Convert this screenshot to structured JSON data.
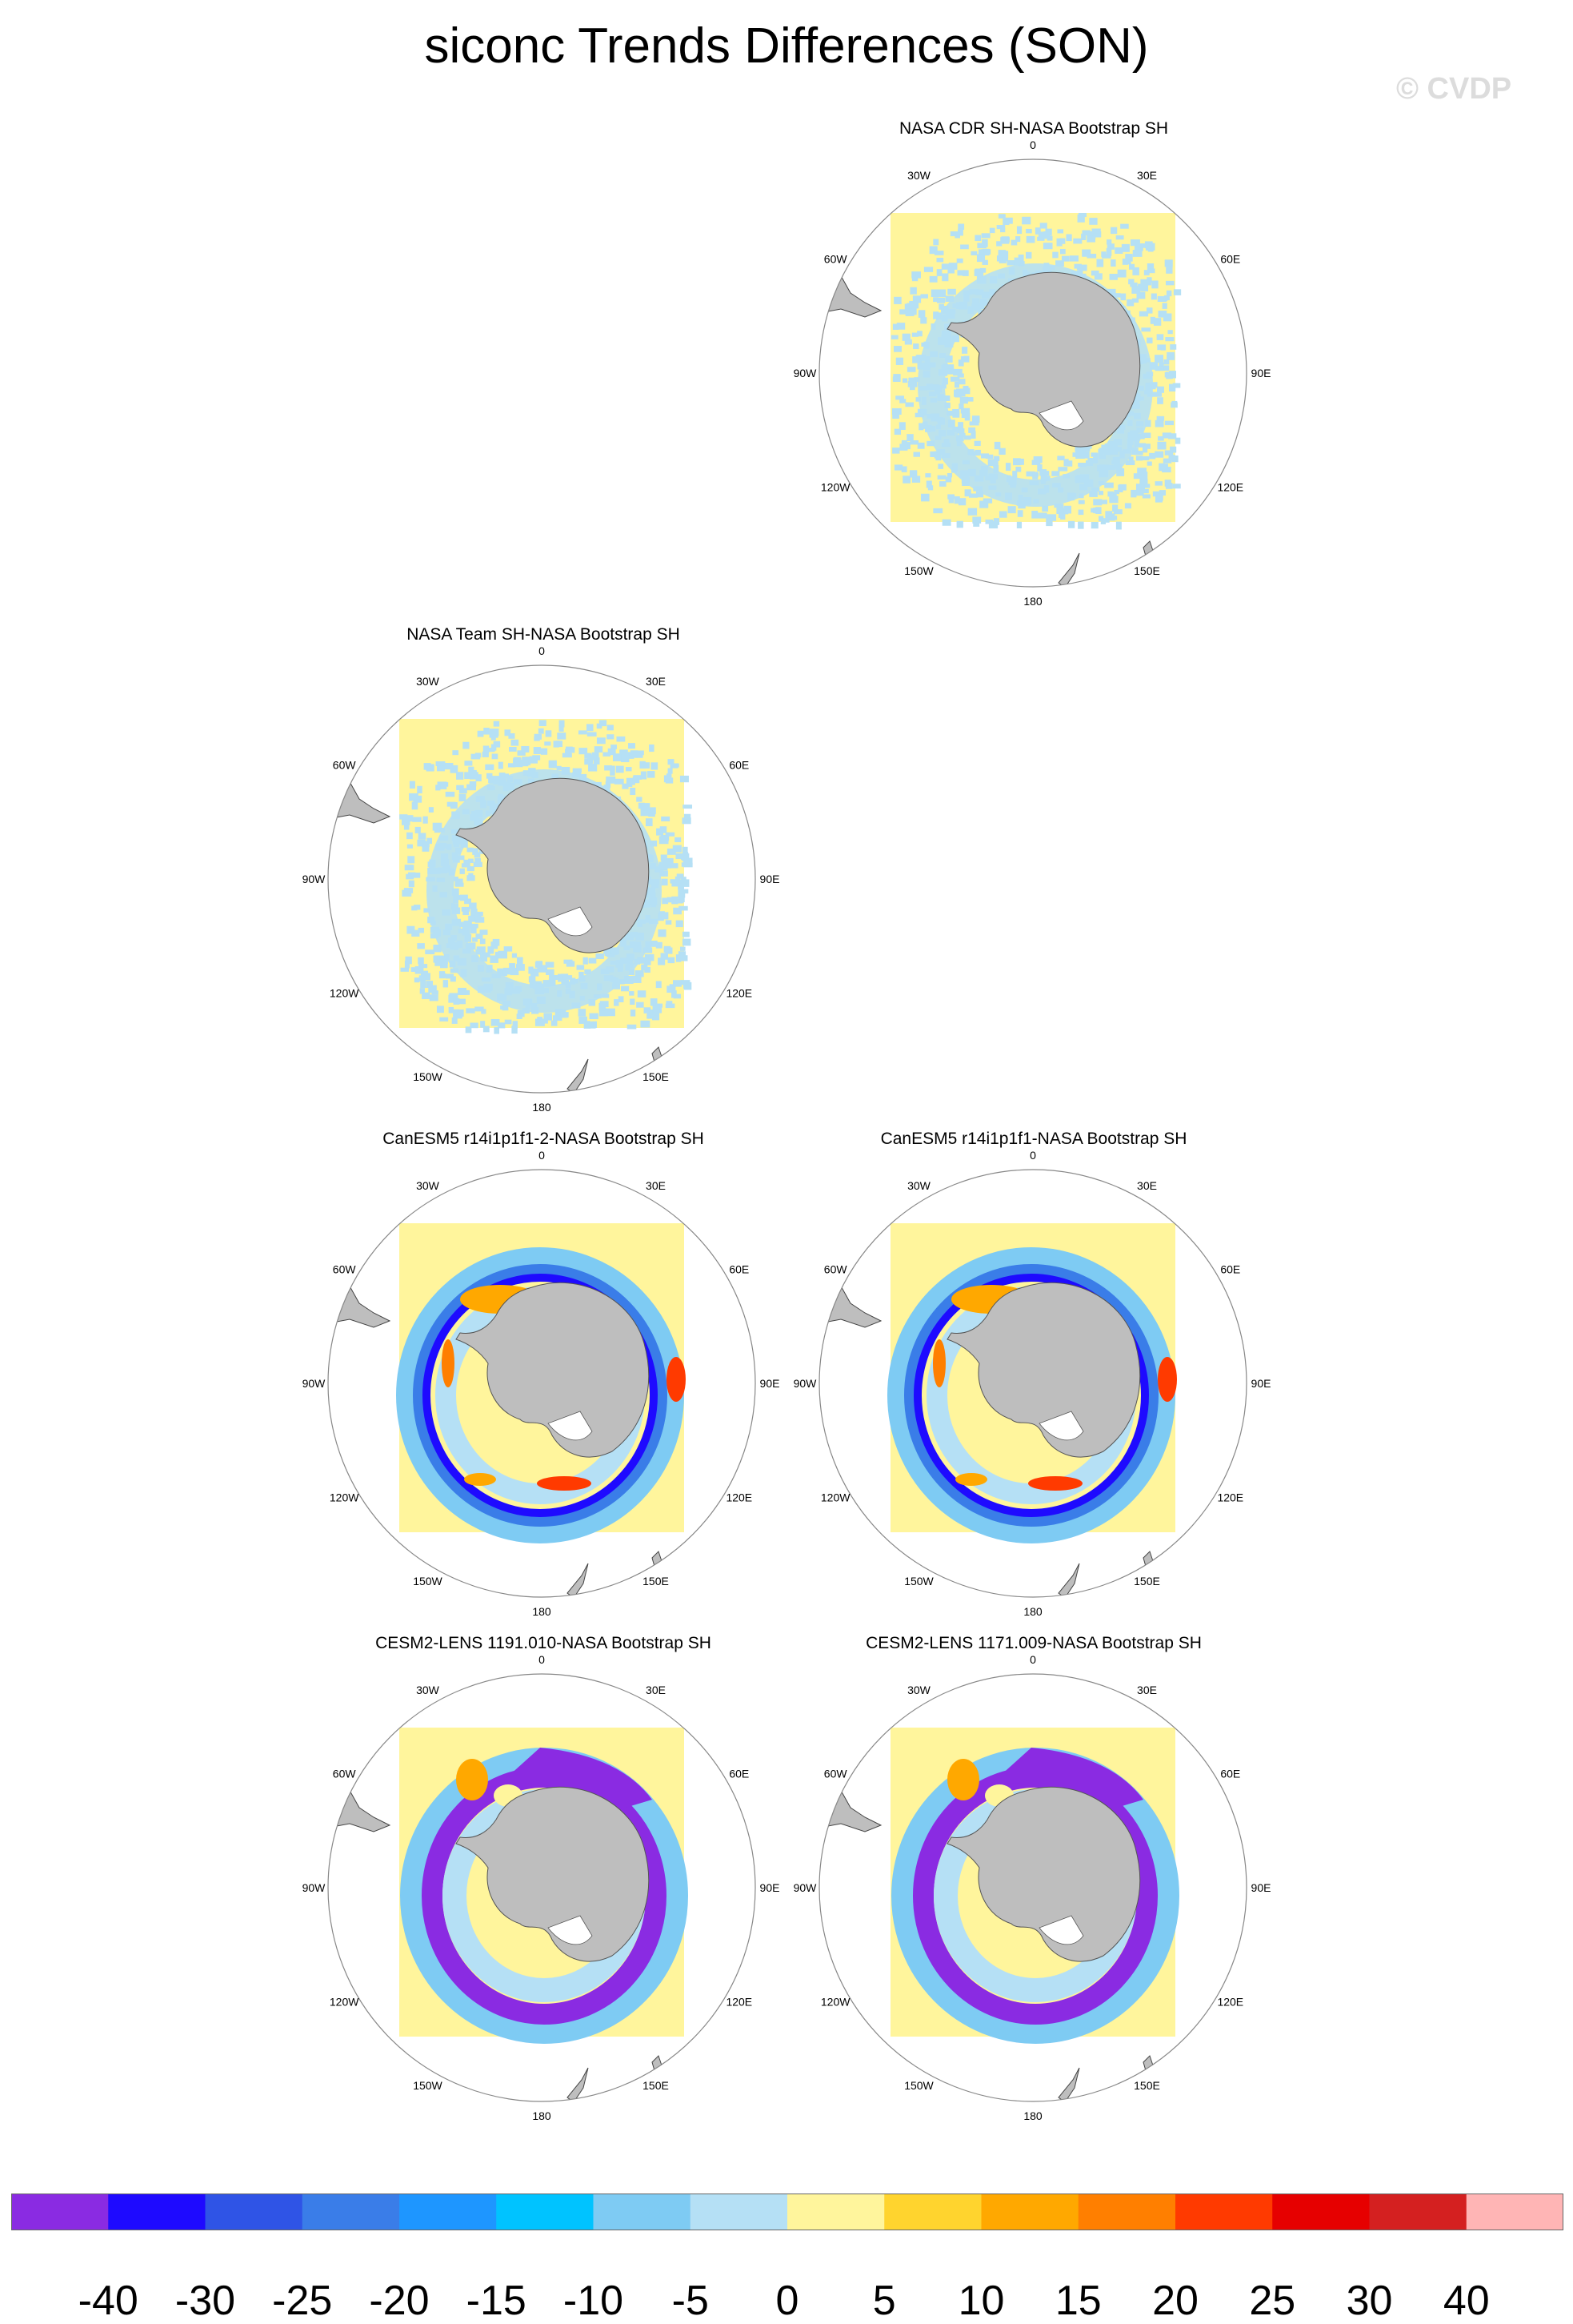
{
  "page": {
    "title": "siconc Trends Differences (SON)",
    "watermark": "© CVDP"
  },
  "panels": [
    {
      "title": "NASA CDR SH-NASA Bootstrap SH",
      "pattern": "low-diff"
    },
    {
      "title": "NASA Team SH-NASA Bootstrap SH",
      "pattern": "low-diff"
    },
    {
      "title": "CanESM5 r14i1p1f1-2-NASA Bootstrap SH",
      "pattern": "canesm"
    },
    {
      "title": "CanESM5 r14i1p1f1-NASA Bootstrap SH",
      "pattern": "canesm"
    },
    {
      "title": "CESM2-LENS 1191.010-NASA Bootstrap SH",
      "pattern": "cesm"
    },
    {
      "title": "CESM2-LENS 1171.009-NASA Bootstrap SH",
      "pattern": "cesm"
    }
  ],
  "map_labels": [
    "0",
    "30E",
    "60E",
    "90E",
    "120E",
    "150E",
    "180",
    "150W",
    "120W",
    "90W",
    "60W",
    "30W"
  ],
  "colorbar": {
    "colors": [
      "#8a2be2",
      "#1e0aff",
      "#2f54e6",
      "#3a7de8",
      "#1e96ff",
      "#00c3ff",
      "#7ecbf3",
      "#b5e0f5",
      "#fff59c",
      "#ffd42e",
      "#ffa800",
      "#ff7f00",
      "#ff3a00",
      "#e60000",
      "#d42020",
      "#ffb5b5"
    ],
    "labels": [
      "-40",
      "-30",
      "-25",
      "-20",
      "-15",
      "-10",
      "-5",
      "0",
      "5",
      "10",
      "15",
      "20",
      "25",
      "30",
      "40"
    ]
  },
  "chart_data": [
    {
      "type": "heatmap",
      "title": "NASA CDR SH-NASA Bootstrap SH",
      "projection": "south polar stereographic"
    },
    {
      "type": "heatmap",
      "title": "NASA Team SH-NASA Bootstrap SH",
      "projection": "south polar stereographic"
    },
    {
      "type": "heatmap",
      "title": "CanESM5 r14i1p1f1-2-NASA Bootstrap SH",
      "projection": "south polar stereographic"
    },
    {
      "type": "heatmap",
      "title": "CanESM5 r14i1p1f1-NASA Bootstrap SH",
      "projection": "south polar stereographic"
    },
    {
      "type": "heatmap",
      "title": "CESM2-LENS 1191.010-NASA Bootstrap SH",
      "projection": "south polar stereographic"
    },
    {
      "type": "heatmap",
      "title": "CESM2-LENS 1171.009-NASA Bootstrap SH",
      "projection": "south polar stereographic"
    }
  ]
}
